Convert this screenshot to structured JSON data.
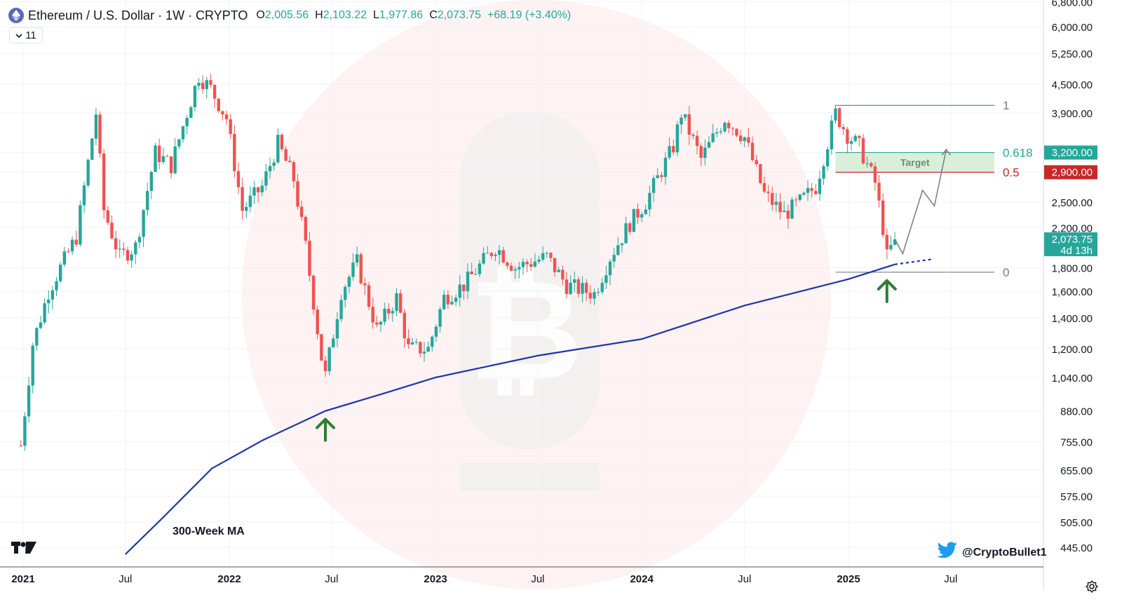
{
  "header": {
    "symbol": "Ethereum / U.S. Dollar · 1W · CRYPTO",
    "o_key": "O",
    "o_val": "2,005.56",
    "h_key": "H",
    "h_val": "2,103.22",
    "l_key": "L",
    "l_val": "1,977.86",
    "c_key": "C",
    "c_val": "2,073.75",
    "change": "+68.19 (+3.40%)"
  },
  "indicator_toggle": {
    "count": "11"
  },
  "annotations": {
    "ma_label": "300-Week MA",
    "target_label": "Target",
    "fib_1": "1",
    "fib_0618": "0.618",
    "fib_05": "0.5",
    "fib_0": "0",
    "twitter_handle": "@CryptoBullet1"
  },
  "colors": {
    "up": "#26a69a",
    "down": "#ef5350",
    "ma": "#1e35a8",
    "arrow": "#2e7d32",
    "target_fill": "#d9efd9",
    "fib_0618": "#26a69a",
    "fib_05": "#c62828"
  },
  "chart_data": {
    "type": "candlestick",
    "title": "Ethereum / U.S. Dollar · 1W · CRYPTO",
    "scale": "log",
    "y_ticks": [
      "445.00",
      "505.00",
      "575.00",
      "655.00",
      "755.00",
      "880.00",
      "1,040.00",
      "1,200.00",
      "1,400.00",
      "1,600.00",
      "1,800.00",
      "2,200.00",
      "2,500.00",
      "2,900.00",
      "3,200.00",
      "3,900.00",
      "4,500.00",
      "5,250.00",
      "6,000.00",
      "6,800.00"
    ],
    "y_tick_values": [
      445,
      505,
      575,
      655,
      755,
      880,
      1040,
      1200,
      1400,
      1600,
      1800,
      2200,
      2500,
      2900,
      3200,
      3900,
      4500,
      5250,
      6000,
      6800
    ],
    "x_ticks": [
      {
        "label": "2021",
        "date": "2021-01-01",
        "bold": true
      },
      {
        "label": "Jul",
        "date": "2021-07-01",
        "bold": false
      },
      {
        "label": "2022",
        "date": "2022-01-01",
        "bold": true
      },
      {
        "label": "Jul",
        "date": "2022-07-01",
        "bold": false
      },
      {
        "label": "2023",
        "date": "2023-01-01",
        "bold": true
      },
      {
        "label": "Jul",
        "date": "2023-07-01",
        "bold": false
      },
      {
        "label": "2024",
        "date": "2024-01-01",
        "bold": true
      },
      {
        "label": "Jul",
        "date": "2024-07-01",
        "bold": false
      },
      {
        "label": "2025",
        "date": "2025-01-01",
        "bold": true
      },
      {
        "label": "Jul",
        "date": "2025-07-01",
        "bold": false
      }
    ],
    "last_price_label": "2,073.75",
    "countdown_label": "4d 13h",
    "price_anchors": [
      {
        "date": "2020-12-28",
        "price": 740
      },
      {
        "date": "2021-01-18",
        "price": 1230
      },
      {
        "date": "2021-02-15",
        "price": 1600
      },
      {
        "date": "2021-03-08",
        "price": 1800
      },
      {
        "date": "2021-04-05",
        "price": 2100
      },
      {
        "date": "2021-05-10",
        "price": 3900
      },
      {
        "date": "2021-05-24",
        "price": 2400
      },
      {
        "date": "2021-06-21",
        "price": 1900
      },
      {
        "date": "2021-07-19",
        "price": 2000
      },
      {
        "date": "2021-08-23",
        "price": 3200
      },
      {
        "date": "2021-09-20",
        "price": 3000
      },
      {
        "date": "2021-10-18",
        "price": 3900
      },
      {
        "date": "2021-11-08",
        "price": 4700
      },
      {
        "date": "2021-11-29",
        "price": 4400
      },
      {
        "date": "2021-12-27",
        "price": 3800
      },
      {
        "date": "2022-01-24",
        "price": 2400
      },
      {
        "date": "2022-02-28",
        "price": 2700
      },
      {
        "date": "2022-03-28",
        "price": 3350
      },
      {
        "date": "2022-04-25",
        "price": 2800
      },
      {
        "date": "2022-05-16",
        "price": 2000
      },
      {
        "date": "2022-06-13",
        "price": 1150
      },
      {
        "date": "2022-06-20",
        "price": 1050
      },
      {
        "date": "2022-07-18",
        "price": 1600
      },
      {
        "date": "2022-08-15",
        "price": 1850
      },
      {
        "date": "2022-09-19",
        "price": 1320
      },
      {
        "date": "2022-10-24",
        "price": 1550
      },
      {
        "date": "2022-11-14",
        "price": 1200
      },
      {
        "date": "2022-12-19",
        "price": 1200
      },
      {
        "date": "2023-01-16",
        "price": 1550
      },
      {
        "date": "2023-02-20",
        "price": 1650
      },
      {
        "date": "2023-04-17",
        "price": 2000
      },
      {
        "date": "2023-05-22",
        "price": 1800
      },
      {
        "date": "2023-06-19",
        "price": 1850
      },
      {
        "date": "2023-07-17",
        "price": 1900
      },
      {
        "date": "2023-08-21",
        "price": 1650
      },
      {
        "date": "2023-10-09",
        "price": 1580
      },
      {
        "date": "2023-11-06",
        "price": 1900
      },
      {
        "date": "2023-12-11",
        "price": 2250
      },
      {
        "date": "2024-01-08",
        "price": 2500
      },
      {
        "date": "2024-02-26",
        "price": 3300
      },
      {
        "date": "2024-03-11",
        "price": 3900
      },
      {
        "date": "2024-04-15",
        "price": 3100
      },
      {
        "date": "2024-05-27",
        "price": 3800
      },
      {
        "date": "2024-07-01",
        "price": 3450
      },
      {
        "date": "2024-08-05",
        "price": 2600
      },
      {
        "date": "2024-09-09",
        "price": 2350
      },
      {
        "date": "2024-10-07",
        "price": 2500
      },
      {
        "date": "2024-11-04",
        "price": 2700
      },
      {
        "date": "2024-12-09",
        "price": 3900
      },
      {
        "date": "2024-12-30",
        "price": 3500
      },
      {
        "date": "2025-01-20",
        "price": 3300
      },
      {
        "date": "2025-02-17",
        "price": 2750
      },
      {
        "date": "2025-03-03",
        "price": 2200
      },
      {
        "date": "2025-03-10",
        "price": 1900
      },
      {
        "date": "2025-03-24",
        "price": 2073.75
      }
    ],
    "ma300": [
      {
        "date": "2021-07-01",
        "price": 430
      },
      {
        "date": "2021-09-01",
        "price": 510
      },
      {
        "date": "2021-12-01",
        "price": 660
      },
      {
        "date": "2022-03-01",
        "price": 760
      },
      {
        "date": "2022-06-20",
        "price": 880
      },
      {
        "date": "2022-10-01",
        "price": 960
      },
      {
        "date": "2023-01-01",
        "price": 1040
      },
      {
        "date": "2023-07-01",
        "price": 1160
      },
      {
        "date": "2024-01-01",
        "price": 1260
      },
      {
        "date": "2024-07-01",
        "price": 1490
      },
      {
        "date": "2025-01-01",
        "price": 1700
      },
      {
        "date": "2025-03-24",
        "price": 1830
      }
    ],
    "ma300_projection": [
      {
        "date": "2025-03-24",
        "price": 1830
      },
      {
        "date": "2025-06-01",
        "price": 1880
      }
    ],
    "fib_levels": [
      {
        "label": "1",
        "price": 4050
      },
      {
        "label": "0.618",
        "price": 3200
      },
      {
        "label": "0.5",
        "price": 2900
      },
      {
        "label": "0",
        "price": 1760
      }
    ],
    "target_zone": {
      "low": 2900,
      "high": 3200,
      "start": "2024-12-09",
      "end": "2025-08-10"
    },
    "projection_path": [
      {
        "date": "2025-03-24",
        "price": 2073.75
      },
      {
        "date": "2025-04-07",
        "price": 1930
      },
      {
        "date": "2025-05-12",
        "price": 2650
      },
      {
        "date": "2025-06-02",
        "price": 2450
      },
      {
        "date": "2025-06-23",
        "price": 3250
      }
    ],
    "bounce_arrows": [
      {
        "date": "2022-06-20",
        "price": 880
      },
      {
        "date": "2025-03-10",
        "price": 1760
      }
    ]
  }
}
